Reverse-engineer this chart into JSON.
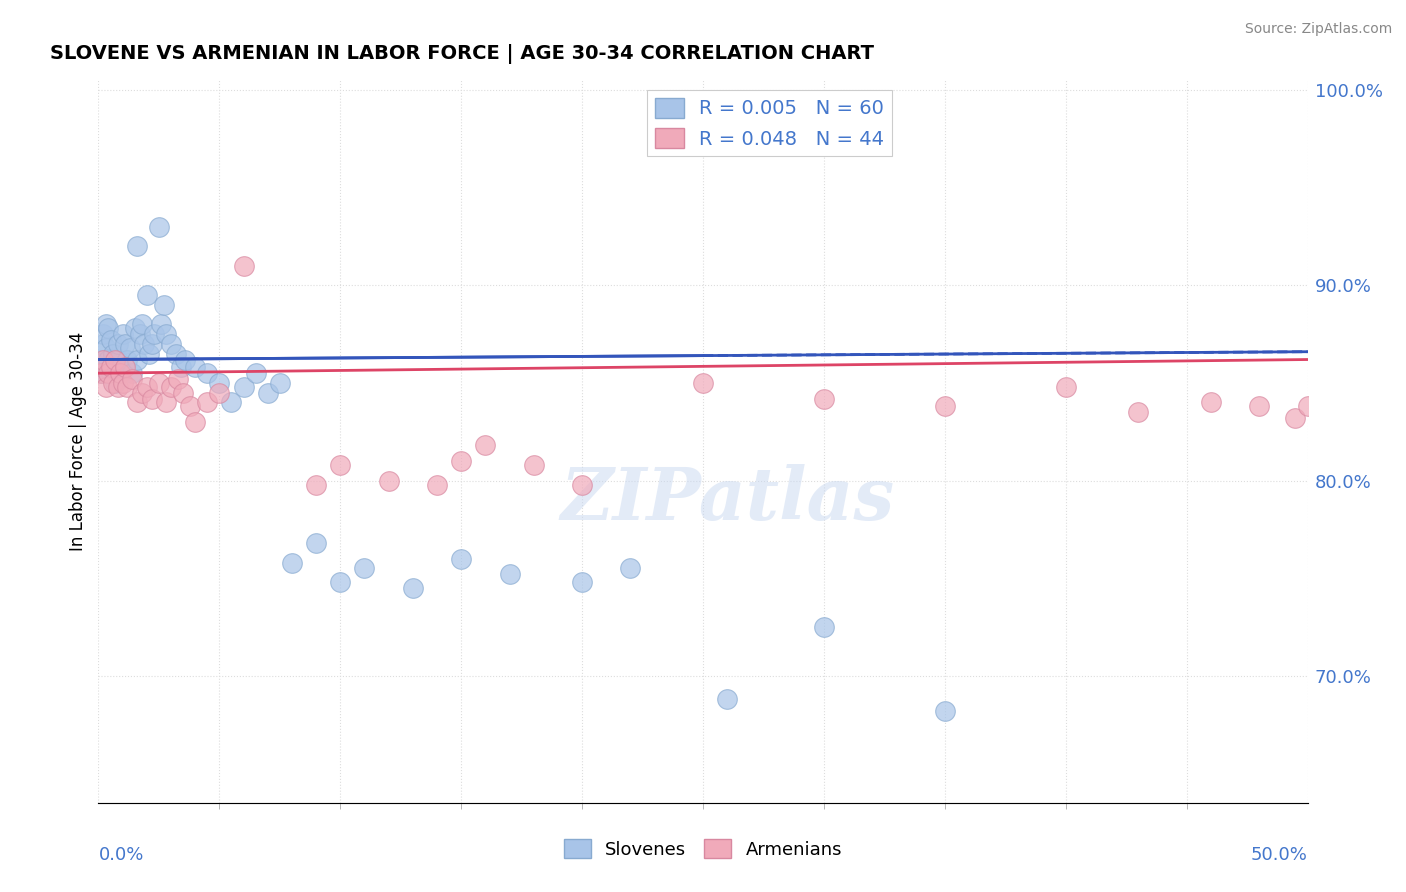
{
  "title": "SLOVENE VS ARMENIAN IN LABOR FORCE | AGE 30-34 CORRELATION CHART",
  "source": "Source: ZipAtlas.com",
  "ylabel": "In Labor Force | Age 30-34",
  "xlim": [
    0.0,
    0.5
  ],
  "ylim": [
    0.635,
    1.005
  ],
  "blue_r": "0.005",
  "blue_n": "60",
  "pink_r": "0.048",
  "pink_n": "44",
  "legend_label1": "Slovenes",
  "legend_label2": "Armenians",
  "blue_color": "#a8c4e8",
  "pink_color": "#f0aaba",
  "blue_edge_color": "#88aad0",
  "pink_edge_color": "#d888a0",
  "blue_line_color": "#3355bb",
  "pink_line_color": "#dd4466",
  "tick_color": "#4477cc",
  "watermark_color": "#c8d8f0",
  "watermark_text": "ZIPatlas",
  "grid_color": "#dddddd",
  "blue_dots_x": [
    0.001,
    0.001,
    0.002,
    0.002,
    0.002,
    0.003,
    0.003,
    0.004,
    0.004,
    0.005,
    0.005,
    0.006,
    0.007,
    0.007,
    0.008,
    0.008,
    0.009,
    0.01,
    0.011,
    0.012,
    0.013,
    0.014,
    0.015,
    0.016,
    0.016,
    0.017,
    0.018,
    0.019,
    0.02,
    0.021,
    0.022,
    0.023,
    0.025,
    0.026,
    0.027,
    0.028,
    0.03,
    0.032,
    0.034,
    0.036,
    0.04,
    0.045,
    0.05,
    0.055,
    0.06,
    0.065,
    0.07,
    0.075,
    0.08,
    0.09,
    0.1,
    0.11,
    0.13,
    0.15,
    0.17,
    0.2,
    0.22,
    0.26,
    0.3,
    0.35
  ],
  "blue_dots_y": [
    0.862,
    0.855,
    0.87,
    0.858,
    0.875,
    0.868,
    0.88,
    0.862,
    0.878,
    0.872,
    0.855,
    0.865,
    0.85,
    0.858,
    0.862,
    0.87,
    0.858,
    0.875,
    0.87,
    0.862,
    0.868,
    0.855,
    0.878,
    0.862,
    0.92,
    0.875,
    0.88,
    0.87,
    0.895,
    0.865,
    0.87,
    0.875,
    0.93,
    0.88,
    0.89,
    0.875,
    0.87,
    0.865,
    0.858,
    0.862,
    0.858,
    0.855,
    0.85,
    0.84,
    0.848,
    0.855,
    0.845,
    0.85,
    0.758,
    0.768,
    0.748,
    0.755,
    0.745,
    0.76,
    0.752,
    0.748,
    0.755,
    0.688,
    0.725,
    0.682
  ],
  "pink_dots_x": [
    0.001,
    0.002,
    0.003,
    0.004,
    0.005,
    0.006,
    0.007,
    0.008,
    0.009,
    0.01,
    0.011,
    0.012,
    0.014,
    0.016,
    0.018,
    0.02,
    0.022,
    0.025,
    0.028,
    0.03,
    0.033,
    0.035,
    0.038,
    0.04,
    0.045,
    0.05,
    0.06,
    0.09,
    0.1,
    0.12,
    0.14,
    0.15,
    0.16,
    0.18,
    0.2,
    0.25,
    0.3,
    0.35,
    0.4,
    0.43,
    0.46,
    0.48,
    0.495,
    0.5
  ],
  "pink_dots_y": [
    0.855,
    0.862,
    0.848,
    0.855,
    0.858,
    0.85,
    0.862,
    0.848,
    0.855,
    0.85,
    0.858,
    0.848,
    0.852,
    0.84,
    0.845,
    0.848,
    0.842,
    0.85,
    0.84,
    0.848,
    0.852,
    0.845,
    0.838,
    0.83,
    0.84,
    0.845,
    0.91,
    0.798,
    0.808,
    0.8,
    0.798,
    0.81,
    0.818,
    0.808,
    0.798,
    0.85,
    0.842,
    0.838,
    0.848,
    0.835,
    0.84,
    0.838,
    0.832,
    0.838
  ],
  "blue_trend_x": [
    0.0,
    0.5
  ],
  "blue_trend_y": [
    0.862,
    0.866
  ],
  "pink_trend_x": [
    0.0,
    0.5
  ],
  "pink_trend_y": [
    0.855,
    0.862
  ],
  "yticks": [
    1.0,
    0.9,
    0.8,
    0.7
  ],
  "ytick_labels": [
    "100.0%",
    "90.0%",
    "80.0%",
    "70.0%"
  ]
}
